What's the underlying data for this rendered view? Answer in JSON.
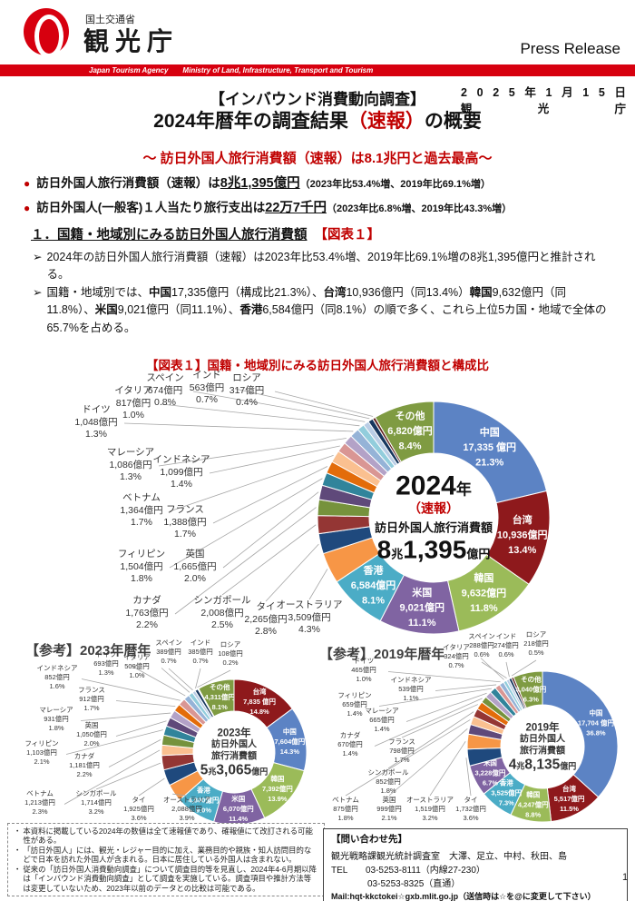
{
  "header": {
    "ministry": "国土交通省",
    "agency": "観光庁",
    "press_release": "Press Release",
    "band_text": "Japan Tourism Agency　　Ministry of Land, Infrastructure, Transport and Tourism",
    "brand_red": "#D7000F",
    "accent_red": "#C00000"
  },
  "date_block": {
    "date": "2025年1月15日",
    "org": "観光庁"
  },
  "title": {
    "kicker": "【インバウンド消費動向調査】",
    "main_prefix": "2024年暦年の調査結果",
    "main_highlight": "（速報）",
    "main_suffix": "の概要",
    "subtitle": "～ 訪日外国人旅行消費額（速報）は8.1兆円と過去最高～"
  },
  "bullets": [
    {
      "lead": "訪日外国人旅行消費額（速報）は",
      "strong": "8兆1,395億円",
      "paren": "（2023年比53.4%増、2019年比69.1%増）"
    },
    {
      "lead": "訪日外国人(一般客)１人当たり旅行支出は",
      "strong": "22万7千円",
      "paren": "（2023年比6.8%増、2019年比43.3%増）"
    }
  ],
  "section": {
    "heading": "１．国籍・地域別にみる訪日外国人旅行消費額",
    "figure_ref": "【図表１】",
    "paragraphs": [
      {
        "marker": "➢",
        "runs": [
          {
            "t": "2024年の訪日外国人旅行消費額（速報）は2023年比53.4%増、2019年比69.1%増の8兆1,395億円と推計される。"
          }
        ]
      },
      {
        "marker": "➢",
        "runs": [
          {
            "t": "国籍・地域別では、"
          },
          {
            "t": "中国",
            "b": 1
          },
          {
            "t": "17,335億円（構成比21.3%）、"
          },
          {
            "t": "台湾",
            "b": 1
          },
          {
            "t": "10,936億円（同13.4%）"
          },
          {
            "t": "韓国",
            "b": 1
          },
          {
            "t": "9,632億円（同11.8%）、"
          },
          {
            "t": "米国",
            "b": 1
          },
          {
            "t": "9,021億円（同11.1%）、"
          },
          {
            "t": "香港",
            "b": 1
          },
          {
            "t": "6,584億円（同8.1%）の順で多く、これら上位5カ国・地域で全体の65.7%を占める。"
          }
        ]
      }
    ]
  },
  "figure": {
    "title": "【図表１】国籍・地域別にみる訪日外国人旅行消費額と構成比"
  },
  "chart_data": [
    {
      "type": "donut",
      "title": "2024年（速報）",
      "center": {
        "year": "2024年",
        "note": "（速報）",
        "desc_lines": [
          "訪日外国人旅行消費額"
        ],
        "amount": "8兆1,395億円"
      },
      "segments": [
        {
          "name": "中国",
          "value": "17,335 億円",
          "pct": 21.3,
          "color": "#5C83C4",
          "placement": "internal"
        },
        {
          "name": "台湾",
          "value": "10,936億円",
          "pct": 13.4,
          "color": "#8E191C",
          "placement": "internal"
        },
        {
          "name": "韓国",
          "value": "9,632億円",
          "pct": 11.8,
          "color": "#9BBB59",
          "placement": "internal"
        },
        {
          "name": "米国",
          "value": "9,021億円",
          "pct": 11.1,
          "color": "#8064A2",
          "placement": "internal"
        },
        {
          "name": "香港",
          "value": "6,584億円",
          "pct": 8.1,
          "color": "#4BACC6",
          "placement": "internal"
        },
        {
          "name": "オーストラリア",
          "value": "3,509億円",
          "pct": 4.3,
          "color": "#F79646",
          "placement": "external"
        },
        {
          "name": "タイ",
          "value": "2,265億円",
          "pct": 2.8,
          "color": "#1F497D",
          "placement": "external"
        },
        {
          "name": "シンガポール",
          "value": "2,008億円",
          "pct": 2.5,
          "color": "#943634",
          "placement": "external"
        },
        {
          "name": "カナダ",
          "value": "1,763億円",
          "pct": 2.2,
          "color": "#76923C",
          "placement": "external"
        },
        {
          "name": "英国",
          "value": "1,665億円",
          "pct": 2.0,
          "color": "#5F497A",
          "placement": "external"
        },
        {
          "name": "フィリピン",
          "value": "1,504億円",
          "pct": 1.8,
          "color": "#31849B",
          "placement": "external"
        },
        {
          "name": "フランス",
          "value": "1,388億円",
          "pct": 1.7,
          "color": "#E36C0A",
          "placement": "external"
        },
        {
          "name": "ベトナム",
          "value": "1,364億円",
          "pct": 1.7,
          "color": "#FAC090",
          "placement": "external"
        },
        {
          "name": "インドネシア",
          "value": "1,099億円",
          "pct": 1.4,
          "color": "#D99694",
          "placement": "external"
        },
        {
          "name": "マレーシア",
          "value": "1,086億円",
          "pct": 1.3,
          "color": "#B3A2C7",
          "placement": "external"
        },
        {
          "name": "ドイツ",
          "value": "1,048億円",
          "pct": 1.3,
          "color": "#95B3D7",
          "placement": "external"
        },
        {
          "name": "イタリア",
          "value": "817億円",
          "pct": 1.0,
          "color": "#92CDDC",
          "placement": "external"
        },
        {
          "name": "スペイン",
          "value": "674億円",
          "pct": 0.8,
          "color": "#B9CDE5",
          "placement": "external"
        },
        {
          "name": "インド",
          "value": "563億円",
          "pct": 0.7,
          "color": "#17375E",
          "placement": "external"
        },
        {
          "name": "ロシア",
          "value": "317億円",
          "pct": 0.4,
          "color": "#632523",
          "placement": "external"
        },
        {
          "name": "その他",
          "value": "6,820億円",
          "pct": 8.4,
          "color": "#7F9B42",
          "placement": "internal"
        }
      ]
    },
    {
      "type": "donut",
      "title": "【参考】2023年暦年",
      "center": {
        "year": "2023年",
        "desc_lines": [
          "訪日外国人",
          "旅行消費額"
        ],
        "amount": "5兆3,065億円"
      },
      "segments": [
        {
          "name": "台湾",
          "value": "7,835 億円",
          "pct": 14.8,
          "color": "#8E191C",
          "placement": "internal"
        },
        {
          "name": "中国",
          "value": "7,604億円",
          "pct": 14.3,
          "color": "#5C83C4",
          "placement": "internal"
        },
        {
          "name": "韓国",
          "value": "7,392億円",
          "pct": 13.9,
          "color": "#9BBB59",
          "placement": "internal"
        },
        {
          "name": "米国",
          "value": "6,070億円",
          "pct": 11.4,
          "color": "#8064A2",
          "placement": "internal"
        },
        {
          "name": "香港",
          "value": "4,800億円",
          "pct": 9.0,
          "color": "#4BACC6",
          "placement": "internal"
        },
        {
          "name": "オーストラリア",
          "value": "2,088億円",
          "pct": 3.9,
          "color": "#F79646",
          "placement": "external"
        },
        {
          "name": "タイ",
          "value": "1,925億円",
          "pct": 3.6,
          "color": "#1F497D",
          "placement": "external"
        },
        {
          "name": "シンガポール",
          "value": "1,714億円",
          "pct": 3.2,
          "color": "#943634",
          "placement": "external"
        },
        {
          "name": "ベトナム",
          "value": "1,213億円",
          "pct": 2.3,
          "color": "#FAC090",
          "placement": "external"
        },
        {
          "name": "カナダ",
          "value": "1,181億円",
          "pct": 2.2,
          "color": "#76923C",
          "placement": "external"
        },
        {
          "name": "フィリピン",
          "value": "1,103億円",
          "pct": 2.1,
          "color": "#31849B",
          "placement": "external"
        },
        {
          "name": "英国",
          "value": "1,050億円",
          "pct": 2.0,
          "color": "#5F497A",
          "placement": "external"
        },
        {
          "name": "マレーシア",
          "value": "931億円",
          "pct": 1.8,
          "color": "#B3A2C7",
          "placement": "external"
        },
        {
          "name": "フランス",
          "value": "912億円",
          "pct": 1.7,
          "color": "#E36C0A",
          "placement": "external"
        },
        {
          "name": "インドネシア",
          "value": "852億円",
          "pct": 1.6,
          "color": "#D99694",
          "placement": "external"
        },
        {
          "name": "ドイツ",
          "value": "693億円",
          "pct": 1.3,
          "color": "#95B3D7",
          "placement": "external"
        },
        {
          "name": "イタリア",
          "value": "509億円",
          "pct": 1.0,
          "color": "#92CDDC",
          "placement": "external"
        },
        {
          "name": "スペイン",
          "value": "389億円",
          "pct": 0.7,
          "color": "#B9CDE5",
          "placement": "external"
        },
        {
          "name": "インド",
          "value": "385億円",
          "pct": 0.7,
          "color": "#17375E",
          "placement": "external"
        },
        {
          "name": "ロシア",
          "value": "108億円",
          "pct": 0.2,
          "color": "#632523",
          "placement": "external"
        },
        {
          "name": "その他",
          "value": "4,311億円",
          "pct": 8.1,
          "color": "#7F9B42",
          "placement": "internal"
        }
      ]
    },
    {
      "type": "donut",
      "title": "【参考】2019年暦年",
      "center": {
        "year": "2019年",
        "desc_lines": [
          "訪日外国人",
          "旅行消費額"
        ],
        "amount": "4兆8,135億円"
      },
      "segments": [
        {
          "name": "中国",
          "value": "17,704 億円",
          "pct": 36.8,
          "color": "#5C83C4",
          "placement": "internal"
        },
        {
          "name": "台湾",
          "value": "5,517億円",
          "pct": 11.5,
          "color": "#8E191C",
          "placement": "internal"
        },
        {
          "name": "韓国",
          "value": "4,247億円",
          "pct": 8.8,
          "color": "#9BBB59",
          "placement": "internal"
        },
        {
          "name": "香港",
          "value": "3,525億円",
          "pct": 7.3,
          "color": "#4BACC6",
          "placement": "internal"
        },
        {
          "name": "米国",
          "value": "3,228億円",
          "pct": 6.7,
          "color": "#8064A2",
          "placement": "internal"
        },
        {
          "name": "タイ",
          "value": "1,732億円",
          "pct": 3.6,
          "color": "#1F497D",
          "placement": "external"
        },
        {
          "name": "オーストラリア",
          "value": "1,519億円",
          "pct": 3.2,
          "color": "#F79646",
          "placement": "external"
        },
        {
          "name": "英国",
          "value": "999億円",
          "pct": 2.1,
          "color": "#5F497A",
          "placement": "external"
        },
        {
          "name": "ベトナム",
          "value": "875億円",
          "pct": 1.8,
          "color": "#FAC090",
          "placement": "external"
        },
        {
          "name": "シンガポール",
          "value": "852億円",
          "pct": 1.8,
          "color": "#943634",
          "placement": "external"
        },
        {
          "name": "フランス",
          "value": "798億円",
          "pct": 1.7,
          "color": "#E36C0A",
          "placement": "external"
        },
        {
          "name": "カナダ",
          "value": "670億円",
          "pct": 1.4,
          "color": "#76923C",
          "placement": "external"
        },
        {
          "name": "マレーシア",
          "value": "665億円",
          "pct": 1.4,
          "color": "#B3A2C7",
          "placement": "external"
        },
        {
          "name": "フィリピン",
          "value": "659億円",
          "pct": 1.4,
          "color": "#31849B",
          "placement": "external"
        },
        {
          "name": "インドネシア",
          "value": "539億円",
          "pct": 1.1,
          "color": "#D99694",
          "placement": "external"
        },
        {
          "name": "ドイツ",
          "value": "465億円",
          "pct": 1.0,
          "color": "#95B3D7",
          "placement": "external"
        },
        {
          "name": "イタリア",
          "value": "324億円",
          "pct": 0.7,
          "color": "#92CDDC",
          "placement": "external"
        },
        {
          "name": "スペイン",
          "value": "288億円",
          "pct": 0.6,
          "color": "#B9CDE5",
          "placement": "external"
        },
        {
          "name": "インド",
          "value": "274億円",
          "pct": 0.6,
          "color": "#17375E",
          "placement": "external"
        },
        {
          "name": "ロシア",
          "value": "218億円",
          "pct": 0.5,
          "color": "#632523",
          "placement": "external"
        },
        {
          "name": "その他",
          "value": "3,040億円",
          "pct": 6.3,
          "color": "#7F9B42",
          "placement": "internal"
        }
      ]
    }
  ],
  "notes": {
    "items": [
      "本資料に掲載している2024年の数値は全て速報値であり、確報値にて改訂される可能性がある。",
      "「訪日外国人」には、観光・レジャー目的に加え、業務目的や親族・知人訪問目的などで日本を訪れた外国人が含まれる。日本に居住している外国人は含まれない。",
      "従来の「訪日外国人消費動向調査」について調査目的等を見直し、2024年4-6月期以降は「インバウンド消費動向調査」として調査を実施している。調査項目や推計方法等は変更していないため、2023年以前のデータとの比較は可能である。"
    ]
  },
  "contact": {
    "heading": "【問い合わせ先】",
    "lines": [
      "観光戦略課観光統計調査室　大澤、足立、中村、秋田、島",
      "TEL　　03-5253-8111（内線27-230）",
      "　　　　03-5253-8325（直通）",
      "Mail:hqt-kkctokei☆gxb.mlit.go.jp（送信時は☆を@に変更して下さい）"
    ]
  },
  "page_number": "1"
}
